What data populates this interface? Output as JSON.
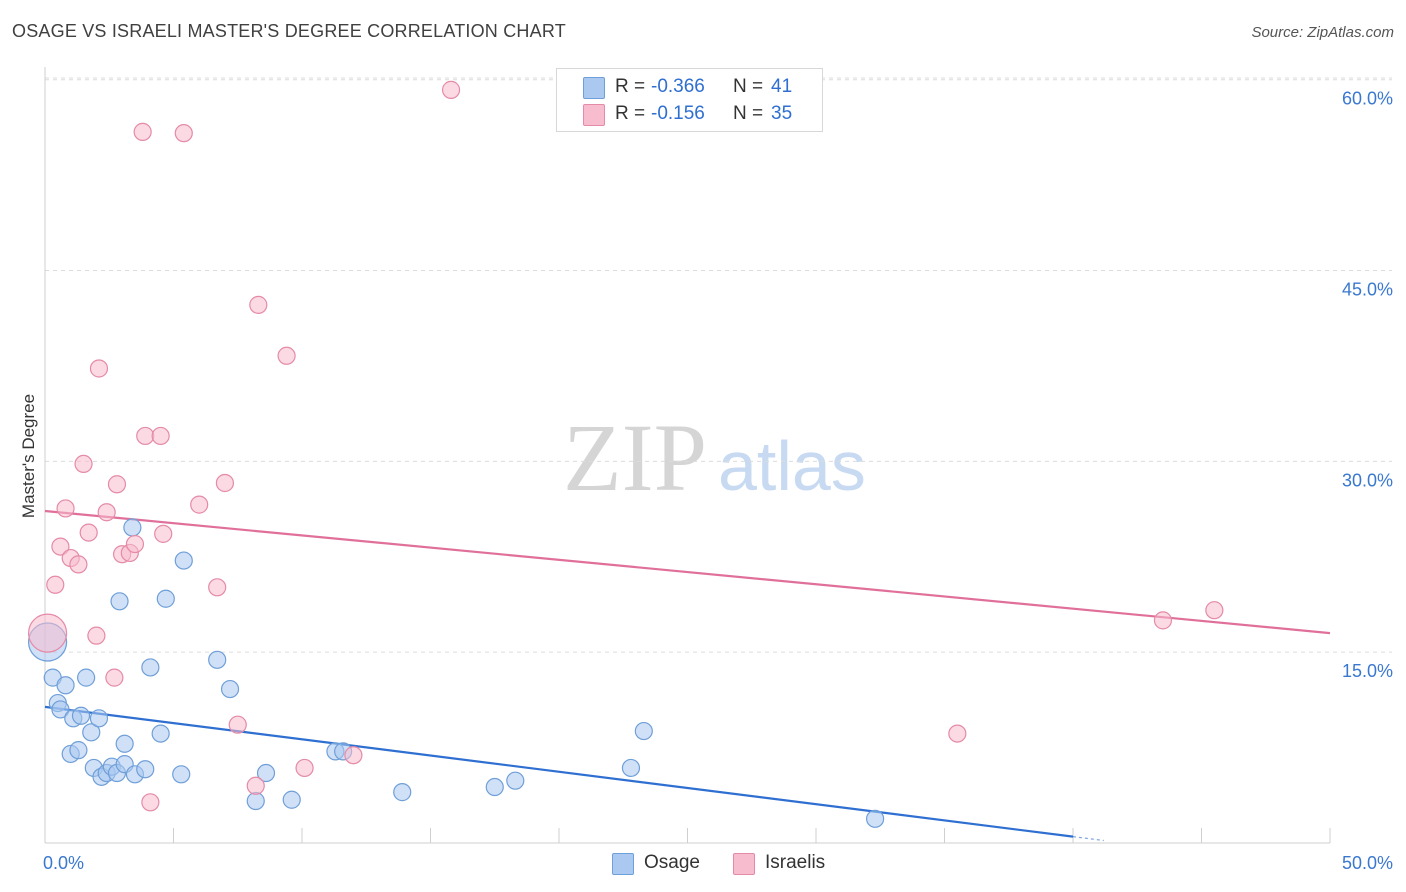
{
  "header": {
    "title": "OSAGE VS ISRAELI MASTER'S DEGREE CORRELATION CHART",
    "source": "Source: ZipAtlas.com"
  },
  "watermark": {
    "zip": "ZIP",
    "atlas": "atlas"
  },
  "legend": {
    "r_label": "R =",
    "n_label": "N =",
    "osage": {
      "r": "-0.366",
      "n": "41"
    },
    "israelis": {
      "r": "-0.156",
      "n": "35"
    }
  },
  "colors": {
    "osage_fill": "#aac8f0",
    "osage_stroke": "#6f9fd8",
    "osage_line": "#2e6fd1",
    "israelis_fill": "#f7bccd",
    "israelis_stroke": "#e58aa7",
    "israelis_line": "#e0709a",
    "tick_text": "#3a78d0",
    "grid": "#dcdcdc"
  },
  "chart_data": {
    "type": "scatter",
    "title": "OSAGE VS ISRAELI MASTER'S DEGREE CORRELATION CHART",
    "xlabel": "",
    "ylabel": "Master's Degree",
    "xlim": [
      0,
      50
    ],
    "ylim": [
      0,
      61
    ],
    "x_tick_labels": [
      "0.0%",
      "50.0%"
    ],
    "y_ticks": [
      15,
      30,
      45,
      60
    ],
    "y_tick_labels": [
      "15.0%",
      "30.0%",
      "45.0%",
      "60.0%"
    ],
    "grid": true,
    "legend_position": "bottom-center",
    "series": [
      {
        "name": "Osage",
        "r": -0.366,
        "n": 41,
        "trend": {
          "x": [
            0.0,
            40.0
          ],
          "y": [
            10.7,
            0.5
          ]
        },
        "points": [
          {
            "x": 0.1,
            "y": 15.8,
            "big": true
          },
          {
            "x": 0.3,
            "y": 13.0
          },
          {
            "x": 0.5,
            "y": 11.0
          },
          {
            "x": 0.6,
            "y": 10.5
          },
          {
            "x": 0.8,
            "y": 12.4
          },
          {
            "x": 1.0,
            "y": 7.0
          },
          {
            "x": 1.1,
            "y": 9.8
          },
          {
            "x": 1.3,
            "y": 7.3
          },
          {
            "x": 1.4,
            "y": 10.0
          },
          {
            "x": 1.6,
            "y": 13.0
          },
          {
            "x": 1.8,
            "y": 8.7
          },
          {
            "x": 1.9,
            "y": 5.9
          },
          {
            "x": 2.1,
            "y": 9.8
          },
          {
            "x": 2.2,
            "y": 5.2
          },
          {
            "x": 2.4,
            "y": 5.5
          },
          {
            "x": 2.6,
            "y": 6.0
          },
          {
            "x": 2.8,
            "y": 5.5
          },
          {
            "x": 2.9,
            "y": 19.0
          },
          {
            "x": 3.1,
            "y": 7.8
          },
          {
            "x": 3.1,
            "y": 6.2
          },
          {
            "x": 3.4,
            "y": 24.8
          },
          {
            "x": 3.5,
            "y": 5.4
          },
          {
            "x": 3.9,
            "y": 5.8
          },
          {
            "x": 4.1,
            "y": 13.8
          },
          {
            "x": 4.5,
            "y": 8.6
          },
          {
            "x": 4.7,
            "y": 19.2
          },
          {
            "x": 5.3,
            "y": 5.4
          },
          {
            "x": 5.4,
            "y": 22.2
          },
          {
            "x": 6.7,
            "y": 14.4
          },
          {
            "x": 7.2,
            "y": 12.1
          },
          {
            "x": 8.2,
            "y": 3.3
          },
          {
            "x": 8.6,
            "y": 5.5
          },
          {
            "x": 9.6,
            "y": 3.4
          },
          {
            "x": 11.3,
            "y": 7.2
          },
          {
            "x": 11.6,
            "y": 7.2
          },
          {
            "x": 13.9,
            "y": 4.0
          },
          {
            "x": 17.5,
            "y": 4.4
          },
          {
            "x": 18.3,
            "y": 4.9
          },
          {
            "x": 22.8,
            "y": 5.9
          },
          {
            "x": 23.3,
            "y": 8.8
          },
          {
            "x": 32.3,
            "y": 1.9
          }
        ]
      },
      {
        "name": "Israelis",
        "r": -0.156,
        "n": 35,
        "trend": {
          "x": [
            0.0,
            50.0
          ],
          "y": [
            26.1,
            16.5
          ]
        },
        "points": [
          {
            "x": 0.1,
            "y": 16.5,
            "big": true
          },
          {
            "x": 0.4,
            "y": 20.3
          },
          {
            "x": 0.6,
            "y": 23.3
          },
          {
            "x": 0.8,
            "y": 26.3
          },
          {
            "x": 1.0,
            "y": 22.4
          },
          {
            "x": 1.3,
            "y": 21.9
          },
          {
            "x": 1.5,
            "y": 29.8
          },
          {
            "x": 1.7,
            "y": 24.4
          },
          {
            "x": 2.0,
            "y": 16.3
          },
          {
            "x": 2.1,
            "y": 37.3
          },
          {
            "x": 2.4,
            "y": 26.0
          },
          {
            "x": 2.7,
            "y": 13.0
          },
          {
            "x": 2.8,
            "y": 28.2
          },
          {
            "x": 3.0,
            "y": 22.7
          },
          {
            "x": 3.3,
            "y": 22.8
          },
          {
            "x": 3.5,
            "y": 23.5
          },
          {
            "x": 3.8,
            "y": 55.9
          },
          {
            "x": 3.9,
            "y": 32.0
          },
          {
            "x": 4.1,
            "y": 3.2
          },
          {
            "x": 4.5,
            "y": 32.0
          },
          {
            "x": 4.6,
            "y": 24.3
          },
          {
            "x": 5.4,
            "y": 55.8
          },
          {
            "x": 6.0,
            "y": 26.6
          },
          {
            "x": 6.7,
            "y": 20.1
          },
          {
            "x": 7.0,
            "y": 28.3
          },
          {
            "x": 7.5,
            "y": 9.3
          },
          {
            "x": 8.3,
            "y": 42.3
          },
          {
            "x": 8.2,
            "y": 4.5
          },
          {
            "x": 9.4,
            "y": 38.3
          },
          {
            "x": 10.1,
            "y": 5.9
          },
          {
            "x": 12.0,
            "y": 6.9
          },
          {
            "x": 15.8,
            "y": 59.2
          },
          {
            "x": 35.5,
            "y": 8.6
          },
          {
            "x": 43.5,
            "y": 17.5
          },
          {
            "x": 45.5,
            "y": 18.3
          }
        ]
      }
    ]
  }
}
